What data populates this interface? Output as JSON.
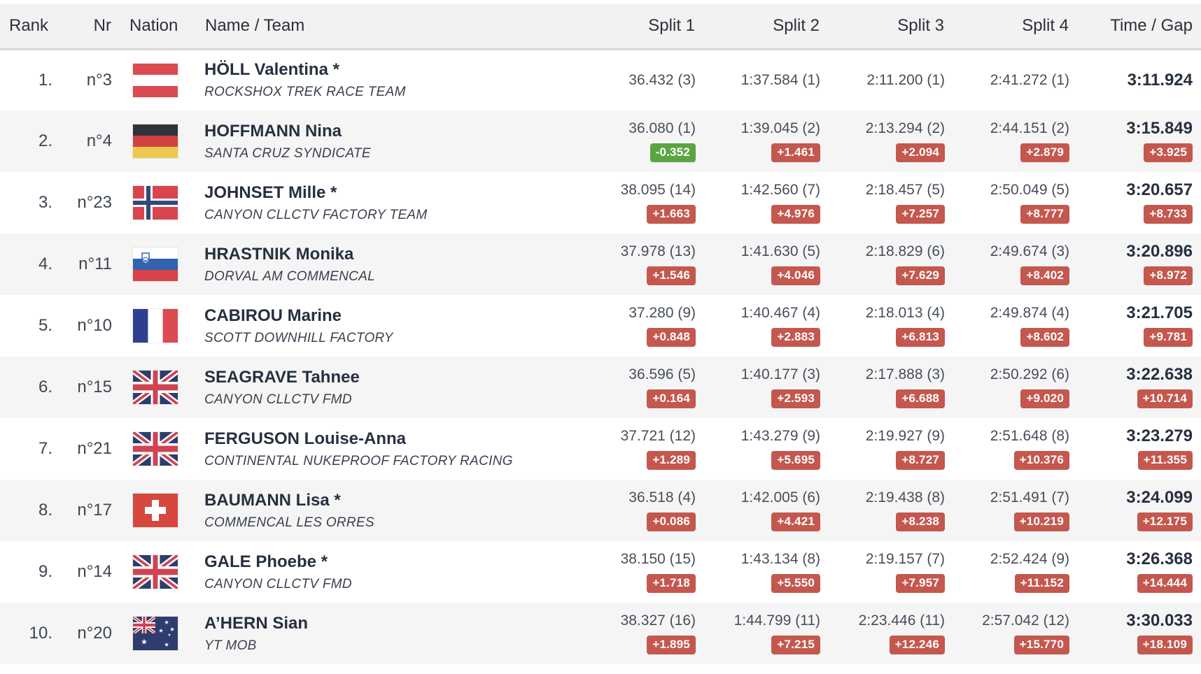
{
  "colors": {
    "badge_red": "#c4574e",
    "badge_green": "#5aa540",
    "header_bg": "#f2f2f2",
    "row_alt_bg": "#f5f5f5"
  },
  "table": {
    "columns": [
      {
        "key": "rank",
        "label": "Rank"
      },
      {
        "key": "nr",
        "label": "Nr"
      },
      {
        "key": "nation",
        "label": "Nation"
      },
      {
        "key": "name",
        "label": "Name / Team"
      },
      {
        "key": "split",
        "label": "Split 1"
      },
      {
        "key": "split",
        "label": "Split 2"
      },
      {
        "key": "split",
        "label": "Split 3"
      },
      {
        "key": "split",
        "label": "Split 4"
      },
      {
        "key": "time",
        "label": "Time / Gap"
      }
    ],
    "rows": [
      {
        "rank": "1.",
        "nr": "n°3",
        "nation": "AUT",
        "name": "HÖLL Valentina *",
        "team": "ROCKSHOX TREK RACE TEAM",
        "splits": [
          {
            "time": "36.432 (3)",
            "gap": null
          },
          {
            "time": "1:37.584 (1)",
            "gap": null
          },
          {
            "time": "2:11.200 (1)",
            "gap": null
          },
          {
            "time": "2:41.272 (1)",
            "gap": null
          }
        ],
        "total": {
          "time": "3:11.924",
          "gap": null
        }
      },
      {
        "rank": "2.",
        "nr": "n°4",
        "nation": "GER",
        "name": "HOFFMANN Nina",
        "team": "SANTA CRUZ SYNDICATE",
        "splits": [
          {
            "time": "36.080 (1)",
            "gap": "-0.352"
          },
          {
            "time": "1:39.045 (2)",
            "gap": "+1.461"
          },
          {
            "time": "2:13.294 (2)",
            "gap": "+2.094"
          },
          {
            "time": "2:44.151 (2)",
            "gap": "+2.879"
          }
        ],
        "total": {
          "time": "3:15.849",
          "gap": "+3.925"
        }
      },
      {
        "rank": "3.",
        "nr": "n°23",
        "nation": "NOR",
        "name": "JOHNSET Mille *",
        "team": "CANYON CLLCTV FACTORY TEAM",
        "splits": [
          {
            "time": "38.095 (14)",
            "gap": "+1.663"
          },
          {
            "time": "1:42.560 (7)",
            "gap": "+4.976"
          },
          {
            "time": "2:18.457 (5)",
            "gap": "+7.257"
          },
          {
            "time": "2:50.049 (5)",
            "gap": "+8.777"
          }
        ],
        "total": {
          "time": "3:20.657",
          "gap": "+8.733"
        }
      },
      {
        "rank": "4.",
        "nr": "n°11",
        "nation": "SLO",
        "name": "HRASTNIK Monika",
        "team": "DORVAL AM COMMENCAL",
        "splits": [
          {
            "time": "37.978 (13)",
            "gap": "+1.546"
          },
          {
            "time": "1:41.630 (5)",
            "gap": "+4.046"
          },
          {
            "time": "2:18.829 (6)",
            "gap": "+7.629"
          },
          {
            "time": "2:49.674 (3)",
            "gap": "+8.402"
          }
        ],
        "total": {
          "time": "3:20.896",
          "gap": "+8.972"
        }
      },
      {
        "rank": "5.",
        "nr": "n°10",
        "nation": "FRA",
        "name": "CABIROU Marine",
        "team": "SCOTT DOWNHILL FACTORY",
        "splits": [
          {
            "time": "37.280 (9)",
            "gap": "+0.848"
          },
          {
            "time": "1:40.467 (4)",
            "gap": "+2.883"
          },
          {
            "time": "2:18.013 (4)",
            "gap": "+6.813"
          },
          {
            "time": "2:49.874 (4)",
            "gap": "+8.602"
          }
        ],
        "total": {
          "time": "3:21.705",
          "gap": "+9.781"
        }
      },
      {
        "rank": "6.",
        "nr": "n°15",
        "nation": "GBR",
        "name": "SEAGRAVE Tahnee",
        "team": "CANYON CLLCTV FMD",
        "splits": [
          {
            "time": "36.596 (5)",
            "gap": "+0.164"
          },
          {
            "time": "1:40.177 (3)",
            "gap": "+2.593"
          },
          {
            "time": "2:17.888 (3)",
            "gap": "+6.688"
          },
          {
            "time": "2:50.292 (6)",
            "gap": "+9.020"
          }
        ],
        "total": {
          "time": "3:22.638",
          "gap": "+10.714"
        }
      },
      {
        "rank": "7.",
        "nr": "n°21",
        "nation": "GBR",
        "name": "FERGUSON Louise-Anna",
        "team": "CONTINENTAL NUKEPROOF FACTORY RACING",
        "splits": [
          {
            "time": "37.721 (12)",
            "gap": "+1.289"
          },
          {
            "time": "1:43.279 (9)",
            "gap": "+5.695"
          },
          {
            "time": "2:19.927 (9)",
            "gap": "+8.727"
          },
          {
            "time": "2:51.648 (8)",
            "gap": "+10.376"
          }
        ],
        "total": {
          "time": "3:23.279",
          "gap": "+11.355"
        }
      },
      {
        "rank": "8.",
        "nr": "n°17",
        "nation": "SUI",
        "name": "BAUMANN Lisa *",
        "team": "COMMENCAL LES ORRES",
        "splits": [
          {
            "time": "36.518 (4)",
            "gap": "+0.086"
          },
          {
            "time": "1:42.005 (6)",
            "gap": "+4.421"
          },
          {
            "time": "2:19.438 (8)",
            "gap": "+8.238"
          },
          {
            "time": "2:51.491 (7)",
            "gap": "+10.219"
          }
        ],
        "total": {
          "time": "3:24.099",
          "gap": "+12.175"
        }
      },
      {
        "rank": "9.",
        "nr": "n°14",
        "nation": "GBR",
        "name": "GALE Phoebe *",
        "team": "CANYON CLLCTV FMD",
        "splits": [
          {
            "time": "38.150 (15)",
            "gap": "+1.718"
          },
          {
            "time": "1:43.134 (8)",
            "gap": "+5.550"
          },
          {
            "time": "2:19.157 (7)",
            "gap": "+7.957"
          },
          {
            "time": "2:52.424 (9)",
            "gap": "+11.152"
          }
        ],
        "total": {
          "time": "3:26.368",
          "gap": "+14.444"
        }
      },
      {
        "rank": "10.",
        "nr": "n°20",
        "nation": "AUS",
        "name": "A’HERN Sian",
        "team": "YT MOB",
        "splits": [
          {
            "time": "38.327 (16)",
            "gap": "+1.895"
          },
          {
            "time": "1:44.799 (11)",
            "gap": "+7.215"
          },
          {
            "time": "2:23.446 (11)",
            "gap": "+12.246"
          },
          {
            "time": "2:57.042 (12)",
            "gap": "+15.770"
          }
        ],
        "total": {
          "time": "3:30.033",
          "gap": "+18.109"
        }
      }
    ]
  }
}
